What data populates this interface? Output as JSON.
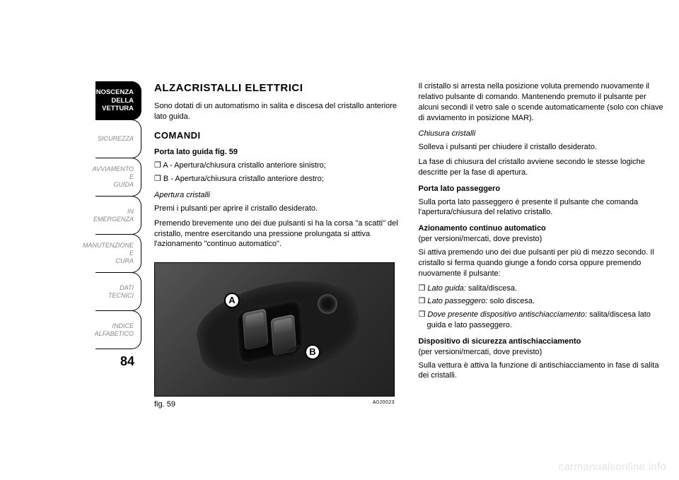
{
  "sidebar": {
    "tabs": [
      {
        "label": "CONOSCENZA\nDELLA VETTURA",
        "active": true
      },
      {
        "label": "SICUREZZA",
        "active": false
      },
      {
        "label": "AVVIAMENTO E\nGUIDA",
        "active": false
      },
      {
        "label": "IN EMERGENZA",
        "active": false
      },
      {
        "label": "MANUTENZIONE E\nCURA",
        "active": false
      },
      {
        "label": "DATI TECNICI",
        "active": false
      },
      {
        "label": "INDICE ALFABETICO",
        "active": false
      }
    ],
    "page_number": "84"
  },
  "left": {
    "h1": "ALZACRISTALLI ELETTRICI",
    "intro": "Sono dotati di un automatismo in salita e discesa del cristallo anteriore lato guida.",
    "h2": "COMANDI",
    "porta_title": "Porta lato guida fig. 59",
    "bullet_a": "A - Apertura/chiusura cristallo anteriore sinistro;",
    "bullet_b": "B - Apertura/chiusura cristallo anteriore destro;",
    "apertura_title": "Apertura cristalli",
    "apertura_1": "Premi i pulsanti per aprire il cristallo desiderato.",
    "apertura_2": "Premendo brevemente uno dei due pulsanti si ha la corsa \"a scatti\" del cristallo, mentre esercitando una pressione prolungata si attiva l'azionamento \"continuo automatico\"."
  },
  "right": {
    "p1": "Il cristallo si arresta nella posizione voluta premendo nuovamente il relativo pulsante di comando. Mantenendo premuto il pulsante per alcuni secondi il vetro sale o scende automaticamente (solo con chiave di avviamento in posizione MAR).",
    "chiusura_title": "Chiusura cristalli",
    "chiusura_1": "Solleva i pulsanti per chiudere il cristallo desiderato.",
    "chiusura_2": "La fase di chiusura del cristallo avviene secondo le stesse logiche descritte per la fase di apertura.",
    "pass_title": "Porta lato passeggero",
    "pass_1": "Sulla porta lato passeggero è presente il pulsante che comanda l'apertura/chiusura del relativo cristallo.",
    "auto_title": "Azionamento continuo automatico",
    "auto_sub": "(per versioni/mercati, dove previsto)",
    "auto_1": "Si attiva premendo uno dei due pulsanti per più di mezzo secondo. Il cristallo si ferma quando giunge a fondo corsa oppure premendo nuovamente il pulsante:",
    "auto_b1_label": "Lato guida:",
    "auto_b1_rest": " salita/discesa.",
    "auto_b2_label": "Lato passeggero:",
    "auto_b2_rest": " solo discesa.",
    "auto_b3_label": "Dove presente dispositivo antischiacciamento:",
    "auto_b3_rest": " salita/discesa lato guida e lato passeggero.",
    "disp_title": "Dispositivo di sicurezza antischiacciamento",
    "disp_sub": "(per versioni/mercati, dove previsto)",
    "disp_1": "Sulla vettura è attiva la funzione di antischiacciamento in fase di salita dei cristalli."
  },
  "figure": {
    "caption": "fig. 59",
    "code": "A0J0023",
    "callout_a": "A",
    "callout_b": "B"
  },
  "watermark": "carmanualsonline.info"
}
